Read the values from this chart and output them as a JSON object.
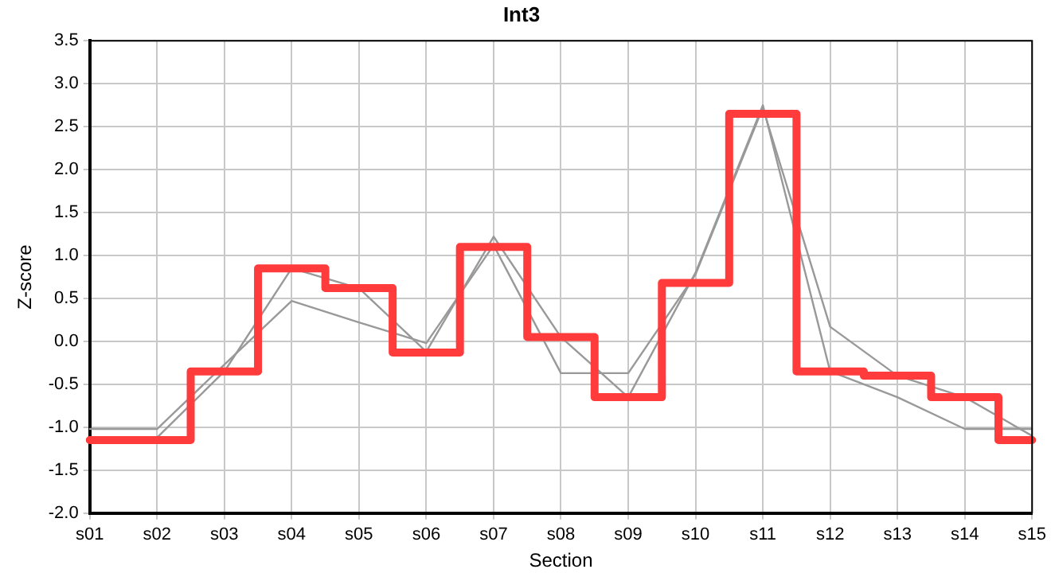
{
  "chart_data": {
    "type": "line",
    "title": "Int3",
    "xlabel": "Section",
    "ylabel": "Z-score",
    "categories": [
      "s01",
      "s02",
      "s03",
      "s04",
      "s05",
      "s06",
      "s07",
      "s08",
      "s09",
      "s10",
      "s11",
      "s12",
      "s13",
      "s14",
      "s15"
    ],
    "series": [
      {
        "type": "line",
        "color": "#999999",
        "values": [
          -1.02,
          -1.02,
          -0.27,
          0.47,
          0.22,
          -0.02,
          1.12,
          -0.37,
          -0.37,
          0.78,
          2.72,
          0.17,
          -0.4,
          -0.65,
          -1.1
        ]
      },
      {
        "type": "line",
        "color": "#999999",
        "values": [
          null,
          -1.12,
          -0.35,
          0.85,
          0.62,
          -0.12,
          1.22,
          0.05,
          -0.65,
          0.8,
          2.75,
          -0.35,
          -0.65,
          -1.02,
          -1.02
        ]
      },
      {
        "type": "step",
        "color": "#ff3b3b",
        "values": [
          -1.15,
          -1.15,
          -0.35,
          0.85,
          0.62,
          -0.13,
          1.1,
          0.05,
          -0.65,
          0.68,
          2.65,
          -0.35,
          -0.4,
          -0.65,
          -1.15
        ]
      }
    ],
    "ylim": [
      -2,
      3.5
    ],
    "yticks": [
      {
        "value": -2,
        "label": "-2.0"
      },
      {
        "value": -1.5,
        "label": "-1.5"
      },
      {
        "value": -1,
        "label": "-1.0"
      },
      {
        "value": -0.5,
        "label": "-0.5"
      },
      {
        "value": 0,
        "label": "0.0"
      },
      {
        "value": 0.5,
        "label": "0.5"
      },
      {
        "value": 1,
        "label": "1.0"
      },
      {
        "value": 1.5,
        "label": "1.5"
      },
      {
        "value": 2,
        "label": "2.0"
      },
      {
        "value": 2.5,
        "label": "2.5"
      },
      {
        "value": 3,
        "label": "3.0"
      },
      {
        "value": 3.5,
        "label": "3.5"
      }
    ],
    "grid": true,
    "legend": false,
    "marker": "none",
    "line_style": "solid"
  }
}
